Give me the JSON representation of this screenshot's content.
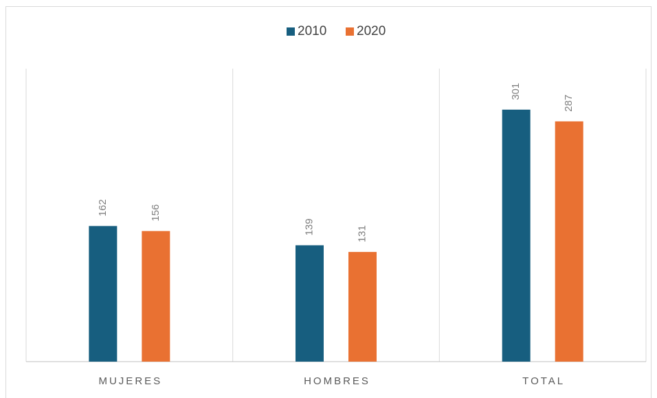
{
  "chart_data": {
    "type": "bar",
    "categories": [
      "MUJERES",
      "HOMBRES",
      "TOTAL"
    ],
    "series": [
      {
        "name": "2010",
        "color": "#175e7f",
        "values": [
          162,
          139,
          301
        ]
      },
      {
        "name": "2020",
        "color": "#e97132",
        "values": [
          156,
          131,
          287
        ]
      }
    ],
    "ylim": [
      0,
      350
    ],
    "legend": "top"
  }
}
